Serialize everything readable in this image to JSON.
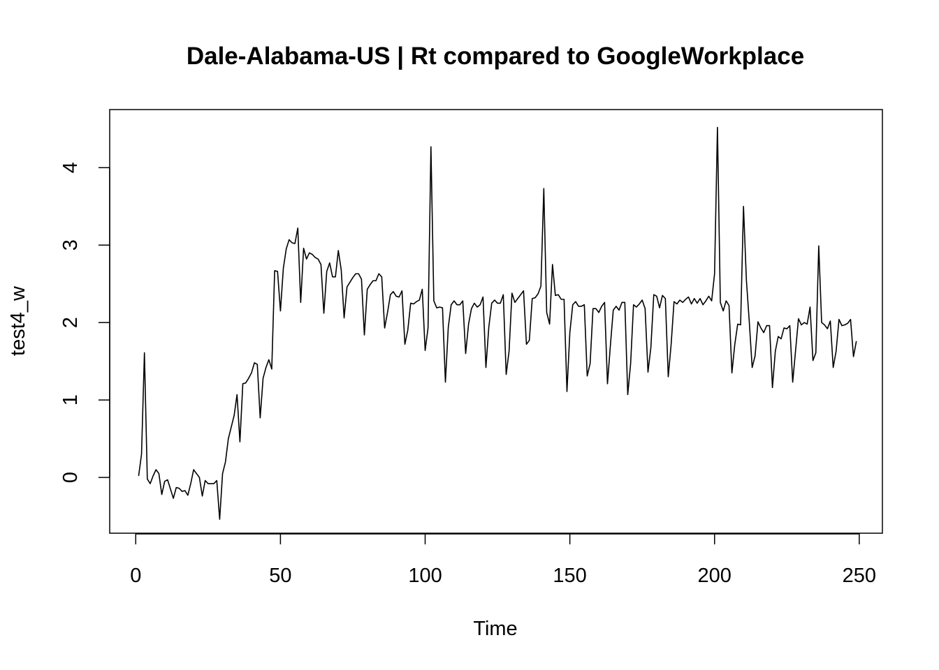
{
  "chart_data": {
    "type": "line",
    "title": "Dale-Alabama-US | Rt compared to GoogleWorkplace",
    "xlabel": "Time",
    "ylabel": "test4_w",
    "xlim": [
      -9,
      258
    ],
    "ylim": [
      -0.72,
      4.75
    ],
    "x_ticks": [
      0,
      50,
      100,
      150,
      200,
      250
    ],
    "y_ticks": [
      0,
      1,
      2,
      3,
      4
    ],
    "grid": false,
    "legend": "none",
    "colors": {
      "line": "#000000",
      "frame": "#000000",
      "background": "#ffffff"
    },
    "series": [
      {
        "points": [
          [
            1,
            0.02
          ],
          [
            2,
            0.3
          ],
          [
            3,
            1.61
          ],
          [
            4,
            -0.02
          ],
          [
            5,
            -0.08
          ],
          [
            6,
            0.02
          ],
          [
            7,
            0.1
          ],
          [
            8,
            0.05
          ],
          [
            9,
            -0.22
          ],
          [
            10,
            -0.05
          ],
          [
            11,
            -0.03
          ],
          [
            12,
            -0.15
          ],
          [
            13,
            -0.27
          ],
          [
            14,
            -0.13
          ],
          [
            15,
            -0.14
          ],
          [
            16,
            -0.18
          ],
          [
            17,
            -0.17
          ],
          [
            18,
            -0.23
          ],
          [
            19,
            -0.08
          ],
          [
            20,
            0.1
          ],
          [
            21,
            0.05
          ],
          [
            22,
            0.0
          ],
          [
            23,
            -0.24
          ],
          [
            24,
            -0.04
          ],
          [
            25,
            -0.08
          ],
          [
            26,
            -0.08
          ],
          [
            27,
            -0.08
          ],
          [
            28,
            -0.04
          ],
          [
            29,
            -0.54
          ],
          [
            30,
            0.05
          ],
          [
            31,
            0.2
          ],
          [
            32,
            0.5
          ],
          [
            33,
            0.65
          ],
          [
            34,
            0.8
          ],
          [
            35,
            1.07
          ],
          [
            36,
            0.46
          ],
          [
            37,
            1.21
          ],
          [
            38,
            1.22
          ],
          [
            39,
            1.28
          ],
          [
            40,
            1.35
          ],
          [
            41,
            1.48
          ],
          [
            42,
            1.46
          ],
          [
            43,
            0.77
          ],
          [
            44,
            1.28
          ],
          [
            45,
            1.42
          ],
          [
            46,
            1.52
          ],
          [
            47,
            1.4
          ],
          [
            48,
            2.67
          ],
          [
            49,
            2.66
          ],
          [
            50,
            2.15
          ],
          [
            51,
            2.7
          ],
          [
            52,
            2.95
          ],
          [
            53,
            3.07
          ],
          [
            54,
            3.03
          ],
          [
            55,
            3.02
          ],
          [
            56,
            3.22
          ],
          [
            57,
            2.26
          ],
          [
            58,
            2.96
          ],
          [
            59,
            2.82
          ],
          [
            60,
            2.9
          ],
          [
            61,
            2.88
          ],
          [
            62,
            2.84
          ],
          [
            63,
            2.82
          ],
          [
            64,
            2.75
          ],
          [
            65,
            2.12
          ],
          [
            66,
            2.66
          ],
          [
            67,
            2.77
          ],
          [
            68,
            2.59
          ],
          [
            69,
            2.59
          ],
          [
            70,
            2.93
          ],
          [
            71,
            2.68
          ],
          [
            72,
            2.06
          ],
          [
            73,
            2.46
          ],
          [
            74,
            2.52
          ],
          [
            75,
            2.58
          ],
          [
            76,
            2.63
          ],
          [
            77,
            2.63
          ],
          [
            78,
            2.56
          ],
          [
            79,
            1.84
          ],
          [
            80,
            2.43
          ],
          [
            81,
            2.49
          ],
          [
            82,
            2.54
          ],
          [
            83,
            2.54
          ],
          [
            84,
            2.63
          ],
          [
            85,
            2.59
          ],
          [
            86,
            1.93
          ],
          [
            87,
            2.13
          ],
          [
            88,
            2.36
          ],
          [
            89,
            2.4
          ],
          [
            90,
            2.34
          ],
          [
            91,
            2.33
          ],
          [
            92,
            2.41
          ],
          [
            93,
            1.72
          ],
          [
            94,
            1.9
          ],
          [
            95,
            2.25
          ],
          [
            96,
            2.24
          ],
          [
            97,
            2.27
          ],
          [
            98,
            2.29
          ],
          [
            99,
            2.43
          ],
          [
            100,
            1.64
          ],
          [
            101,
            1.93
          ],
          [
            102,
            4.27
          ],
          [
            103,
            2.28
          ],
          [
            104,
            2.19
          ],
          [
            105,
            2.2
          ],
          [
            106,
            2.19
          ],
          [
            107,
            1.23
          ],
          [
            108,
            1.94
          ],
          [
            109,
            2.23
          ],
          [
            110,
            2.28
          ],
          [
            111,
            2.23
          ],
          [
            112,
            2.23
          ],
          [
            113,
            2.28
          ],
          [
            114,
            1.6
          ],
          [
            115,
            1.98
          ],
          [
            116,
            2.18
          ],
          [
            117,
            2.25
          ],
          [
            118,
            2.2
          ],
          [
            119,
            2.23
          ],
          [
            120,
            2.33
          ],
          [
            121,
            1.42
          ],
          [
            122,
            1.94
          ],
          [
            123,
            2.25
          ],
          [
            124,
            2.29
          ],
          [
            125,
            2.25
          ],
          [
            126,
            2.25
          ],
          [
            127,
            2.36
          ],
          [
            128,
            1.33
          ],
          [
            129,
            1.63
          ],
          [
            130,
            2.38
          ],
          [
            131,
            2.26
          ],
          [
            132,
            2.31
          ],
          [
            133,
            2.36
          ],
          [
            134,
            2.41
          ],
          [
            135,
            1.72
          ],
          [
            136,
            1.77
          ],
          [
            137,
            2.31
          ],
          [
            138,
            2.32
          ],
          [
            139,
            2.37
          ],
          [
            140,
            2.47
          ],
          [
            141,
            3.73
          ],
          [
            142,
            2.13
          ],
          [
            143,
            1.98
          ],
          [
            144,
            2.75
          ],
          [
            145,
            2.35
          ],
          [
            146,
            2.36
          ],
          [
            147,
            2.3
          ],
          [
            148,
            2.3
          ],
          [
            149,
            1.11
          ],
          [
            150,
            1.87
          ],
          [
            151,
            2.23
          ],
          [
            152,
            2.27
          ],
          [
            153,
            2.21
          ],
          [
            154,
            2.21
          ],
          [
            155,
            2.23
          ],
          [
            156,
            1.31
          ],
          [
            157,
            1.47
          ],
          [
            158,
            2.18
          ],
          [
            159,
            2.18
          ],
          [
            160,
            2.13
          ],
          [
            161,
            2.21
          ],
          [
            162,
            2.26
          ],
          [
            163,
            1.21
          ],
          [
            164,
            1.7
          ],
          [
            165,
            2.16
          ],
          [
            166,
            2.21
          ],
          [
            167,
            2.16
          ],
          [
            168,
            2.26
          ],
          [
            169,
            2.26
          ],
          [
            170,
            1.07
          ],
          [
            171,
            1.47
          ],
          [
            172,
            2.23
          ],
          [
            173,
            2.2
          ],
          [
            174,
            2.24
          ],
          [
            175,
            2.29
          ],
          [
            176,
            2.18
          ],
          [
            177,
            1.36
          ],
          [
            178,
            1.68
          ],
          [
            179,
            2.36
          ],
          [
            180,
            2.34
          ],
          [
            181,
            2.19
          ],
          [
            182,
            2.35
          ],
          [
            183,
            2.31
          ],
          [
            184,
            1.3
          ],
          [
            185,
            1.72
          ],
          [
            186,
            2.27
          ],
          [
            187,
            2.24
          ],
          [
            188,
            2.29
          ],
          [
            189,
            2.26
          ],
          [
            190,
            2.3
          ],
          [
            191,
            2.33
          ],
          [
            192,
            2.24
          ],
          [
            193,
            2.31
          ],
          [
            194,
            2.25
          ],
          [
            195,
            2.31
          ],
          [
            196,
            2.23
          ],
          [
            197,
            2.28
          ],
          [
            198,
            2.34
          ],
          [
            199,
            2.28
          ],
          [
            200,
            2.63
          ],
          [
            201,
            4.52
          ],
          [
            202,
            2.26
          ],
          [
            203,
            2.15
          ],
          [
            204,
            2.28
          ],
          [
            205,
            2.22
          ],
          [
            206,
            1.35
          ],
          [
            207,
            1.72
          ],
          [
            208,
            1.98
          ],
          [
            209,
            1.97
          ],
          [
            210,
            3.5
          ],
          [
            211,
            2.55
          ],
          [
            212,
            2.01
          ],
          [
            213,
            1.42
          ],
          [
            214,
            1.57
          ],
          [
            215,
            2.01
          ],
          [
            216,
            1.93
          ],
          [
            217,
            1.87
          ],
          [
            218,
            1.96
          ],
          [
            219,
            1.96
          ],
          [
            220,
            1.16
          ],
          [
            221,
            1.63
          ],
          [
            222,
            1.82
          ],
          [
            223,
            1.79
          ],
          [
            224,
            1.93
          ],
          [
            225,
            1.92
          ],
          [
            226,
            1.96
          ],
          [
            227,
            1.23
          ],
          [
            228,
            1.64
          ],
          [
            229,
            2.05
          ],
          [
            230,
            1.97
          ],
          [
            231,
            2.0
          ],
          [
            232,
            1.98
          ],
          [
            233,
            2.2
          ],
          [
            234,
            1.51
          ],
          [
            235,
            1.61
          ],
          [
            236,
            2.99
          ],
          [
            237,
            2.0
          ],
          [
            238,
            1.97
          ],
          [
            239,
            1.92
          ],
          [
            240,
            2.02
          ],
          [
            241,
            1.42
          ],
          [
            242,
            1.63
          ],
          [
            243,
            2.04
          ],
          [
            244,
            1.96
          ],
          [
            245,
            1.97
          ],
          [
            246,
            1.99
          ],
          [
            247,
            2.04
          ],
          [
            248,
            1.56
          ],
          [
            249,
            1.76
          ]
        ]
      }
    ]
  }
}
